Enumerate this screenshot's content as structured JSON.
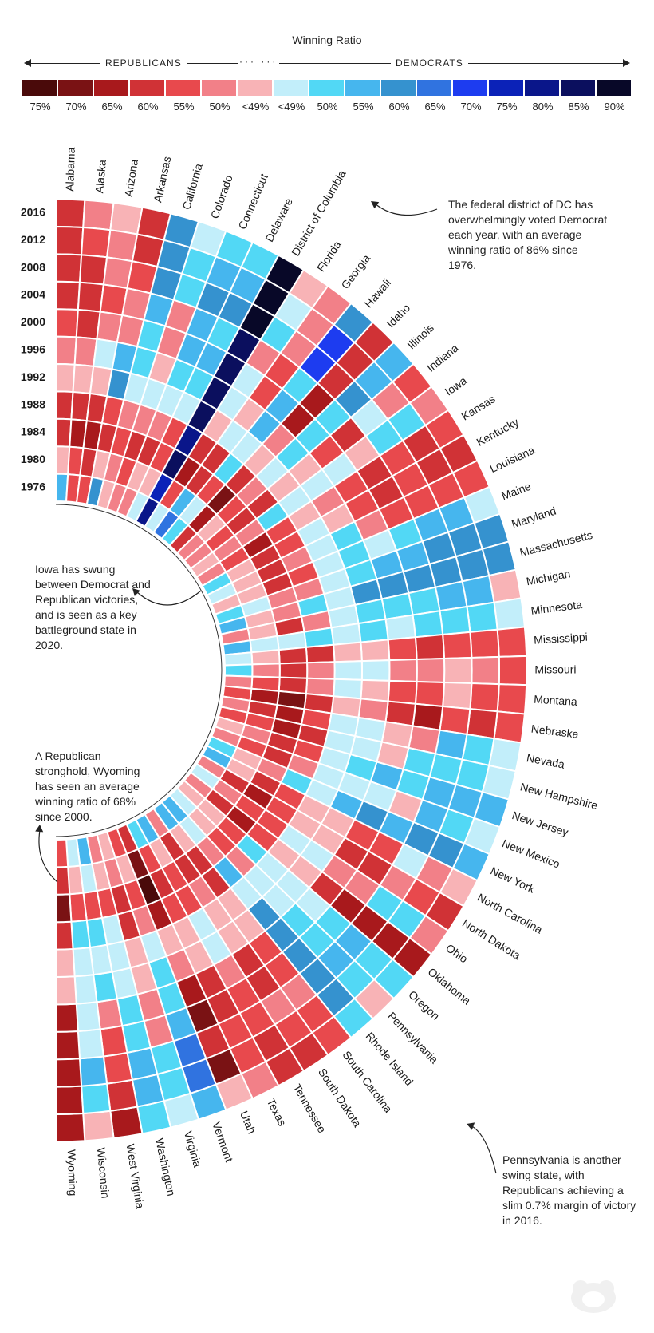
{
  "legend": {
    "title": "Winning Ratio",
    "left_label": "REPUBLICANS",
    "right_label": "DEMOCRATS",
    "dots": "··· ···",
    "swatches": [
      {
        "label": "75%",
        "color": "#4a0a0a"
      },
      {
        "label": "70%",
        "color": "#7a1214"
      },
      {
        "label": "65%",
        "color": "#a8191c"
      },
      {
        "label": "60%",
        "color": "#d03236"
      },
      {
        "label": "55%",
        "color": "#e8494d"
      },
      {
        "label": "50%",
        "color": "#f28088"
      },
      {
        "label": "<49%",
        "color": "#f8b3b6"
      },
      {
        "label": "<49%",
        "color": "#c2eefa"
      },
      {
        "label": "50%",
        "color": "#52d8f5"
      },
      {
        "label": "55%",
        "color": "#46b6ee"
      },
      {
        "label": "60%",
        "color": "#3592cf"
      },
      {
        "label": "65%",
        "color": "#3073e0"
      },
      {
        "label": "70%",
        "color": "#1d3cf0"
      },
      {
        "label": "75%",
        "color": "#0b22b8"
      },
      {
        "label": "80%",
        "color": "#0a168a"
      },
      {
        "label": "85%",
        "color": "#0b0f5e"
      },
      {
        "label": "90%",
        "color": "#080828"
      }
    ]
  },
  "annotations": {
    "dc": "The federal district of DC has overwhelmingly voted Democrat each year, with an average winning ratio of 86% since 1976.",
    "iowa": "Iowa has swung between Democrat and Republican victories, and is seen as a key battleground state in 2020.",
    "wyoming": "A Republican stronghold, Wyoming has seen an average winning ratio of 68% since 2000.",
    "pennsylvania": "Pennsylvania is another swing state, with Republicans achieving a slim 0.7% margin of victory in 2016."
  },
  "chart_data": {
    "type": "heatmap",
    "title": "Winning Ratio",
    "years": [
      "2016",
      "2012",
      "2008",
      "2004",
      "2000",
      "1996",
      "1992",
      "1988",
      "1984",
      "1980",
      "1976"
    ],
    "code_legend": {
      "R75": "#4a0a0a",
      "R70": "#7a1214",
      "R65": "#a8191c",
      "R60": "#d03236",
      "R55": "#e8494d",
      "R50": "#f28088",
      "R49": "#f8b3b6",
      "D49": "#c2eefa",
      "D50": "#52d8f5",
      "D55": "#46b6ee",
      "D60": "#3592cf",
      "D65": "#3073e0",
      "D70": "#1d3cf0",
      "D75": "#0b22b8",
      "D80": "#0a168a",
      "D85": "#0b0f5e",
      "D90": "#080828"
    },
    "states": [
      {
        "name": "Alabama",
        "results": [
          "R60",
          "R60",
          "R60",
          "R60",
          "R55",
          "R50",
          "R49",
          "R60",
          "R60",
          "R49",
          "D55"
        ]
      },
      {
        "name": "Alaska",
        "results": [
          "R50",
          "R55",
          "R60",
          "R60",
          "R60",
          "R50",
          "R49",
          "R60",
          "R65",
          "R55",
          "R55"
        ]
      },
      {
        "name": "Arizona",
        "results": [
          "R49",
          "R50",
          "R50",
          "R55",
          "R50",
          "D49",
          "R49",
          "R60",
          "R65",
          "R60",
          "R55"
        ]
      },
      {
        "name": "Arkansas",
        "results": [
          "R60",
          "R60",
          "R55",
          "R50",
          "R50",
          "D55",
          "D60",
          "R55",
          "R60",
          "R49",
          "D60"
        ]
      },
      {
        "name": "California",
        "results": [
          "D60",
          "D60",
          "D60",
          "D55",
          "D50",
          "D50",
          "D49",
          "R50",
          "R55",
          "R50",
          "R49"
        ]
      },
      {
        "name": "Colorado",
        "results": [
          "D49",
          "D50",
          "D50",
          "R50",
          "R50",
          "R49",
          "D49",
          "R50",
          "R60",
          "R55",
          "R50"
        ]
      },
      {
        "name": "Connecticut",
        "results": [
          "D50",
          "D55",
          "D60",
          "D55",
          "D55",
          "D50",
          "D49",
          "R50",
          "R60",
          "R49",
          "R50"
        ]
      },
      {
        "name": "Delaware",
        "results": [
          "D50",
          "D55",
          "D60",
          "D50",
          "D55",
          "D50",
          "D49",
          "R55",
          "R55",
          "R49",
          "D49"
        ]
      },
      {
        "name": "District of Columbia",
        "results": [
          "D90",
          "D90",
          "D90",
          "D85",
          "D85",
          "D85",
          "D85",
          "D80",
          "D85",
          "D75",
          "D80"
        ]
      },
      {
        "name": "Florida",
        "results": [
          "R49",
          "D49",
          "D50",
          "R50",
          "D49",
          "D49",
          "R49",
          "R60",
          "R65",
          "R55",
          "D49"
        ]
      },
      {
        "name": "Georgia",
        "results": [
          "R50",
          "R50",
          "R50",
          "R55",
          "R55",
          "R49",
          "D49",
          "R60",
          "R60",
          "D55",
          "D65"
        ]
      },
      {
        "name": "Hawaii",
        "results": [
          "D60",
          "D70",
          "D70",
          "D50",
          "D55",
          "D55",
          "D49",
          "D50",
          "R55",
          "D49",
          "D50"
        ]
      },
      {
        "name": "Idaho",
        "results": [
          "R60",
          "R60",
          "R60",
          "R65",
          "R65",
          "R50",
          "R49",
          "R60",
          "R70",
          "R65",
          "R60"
        ]
      },
      {
        "name": "Illinois",
        "results": [
          "D55",
          "D55",
          "D60",
          "D50",
          "D50",
          "D50",
          "D49",
          "R50",
          "R55",
          "R49",
          "R50"
        ]
      },
      {
        "name": "Indiana",
        "results": [
          "R55",
          "R50",
          "D49",
          "R60",
          "R55",
          "R49",
          "R49",
          "R60",
          "R60",
          "R55",
          "R50"
        ]
      },
      {
        "name": "Iowa",
        "results": [
          "R50",
          "D50",
          "D50",
          "R49",
          "D49",
          "D49",
          "D49",
          "D50",
          "R50",
          "R50",
          "R49"
        ]
      },
      {
        "name": "Kansas",
        "results": [
          "R55",
          "R60",
          "R55",
          "R60",
          "R55",
          "R50",
          "R49",
          "R55",
          "R65",
          "R55",
          "R50"
        ]
      },
      {
        "name": "Kentucky",
        "results": [
          "R60",
          "R60",
          "R55",
          "R60",
          "R55",
          "R49",
          "D49",
          "R55",
          "R60",
          "R49",
          "D50"
        ]
      },
      {
        "name": "Louisiana",
        "results": [
          "R55",
          "R55",
          "R55",
          "R55",
          "R50",
          "D50",
          "D49",
          "R50",
          "R60",
          "R49",
          "D49"
        ]
      },
      {
        "name": "Maine",
        "results": [
          "D49",
          "D55",
          "D55",
          "D50",
          "D49",
          "D50",
          "D49",
          "R55",
          "R60",
          "R49",
          "R49"
        ]
      },
      {
        "name": "Maryland",
        "results": [
          "D60",
          "D60",
          "D60",
          "D55",
          "D55",
          "D50",
          "D49",
          "R50",
          "R50",
          "D49",
          "D50"
        ]
      },
      {
        "name": "Massachusetts",
        "results": [
          "D60",
          "D60",
          "D60",
          "D60",
          "D60",
          "D60",
          "D49",
          "D50",
          "R50",
          "R49",
          "D55"
        ]
      },
      {
        "name": "Michigan",
        "results": [
          "R49",
          "D55",
          "D55",
          "D50",
          "D50",
          "D50",
          "D49",
          "R50",
          "R60",
          "R49",
          "R50"
        ]
      },
      {
        "name": "Minnesota",
        "results": [
          "D49",
          "D50",
          "D50",
          "D50",
          "D49",
          "D50",
          "D49",
          "D50",
          "D49",
          "D49",
          "D55"
        ]
      },
      {
        "name": "Mississippi",
        "results": [
          "R55",
          "R55",
          "R55",
          "R60",
          "R55",
          "R49",
          "R49",
          "R60",
          "R60",
          "R49",
          "D49"
        ]
      },
      {
        "name": "Missouri",
        "results": [
          "R55",
          "R50",
          "R49",
          "R50",
          "R50",
          "D49",
          "D49",
          "R50",
          "R60",
          "R50",
          "D50"
        ]
      },
      {
        "name": "Montana",
        "results": [
          "R55",
          "R55",
          "R49",
          "R55",
          "R55",
          "R49",
          "D49",
          "R50",
          "R60",
          "R55",
          "R50"
        ]
      },
      {
        "name": "Nebraska",
        "results": [
          "R55",
          "R60",
          "R55",
          "R65",
          "R60",
          "R50",
          "R49",
          "R60",
          "R70",
          "R65",
          "R55"
        ]
      },
      {
        "name": "Nevada",
        "results": [
          "D49",
          "D50",
          "D55",
          "R50",
          "R49",
          "D49",
          "D49",
          "R55",
          "R65",
          "R60",
          "R50"
        ]
      },
      {
        "name": "New Hampshire",
        "results": [
          "D49",
          "D50",
          "D50",
          "D50",
          "R49",
          "D49",
          "D49",
          "R60",
          "R65",
          "R55",
          "R55"
        ]
      },
      {
        "name": "New Jersey",
        "results": [
          "D55",
          "D55",
          "D55",
          "D50",
          "D55",
          "D50",
          "D49",
          "R55",
          "R60",
          "R50",
          "R49"
        ]
      },
      {
        "name": "New Mexico",
        "results": [
          "D49",
          "D50",
          "D55",
          "R49",
          "D49",
          "D49",
          "D49",
          "R50",
          "R60",
          "R55",
          "R50"
        ]
      },
      {
        "name": "New York",
        "results": [
          "D55",
          "D60",
          "D60",
          "D55",
          "D60",
          "D55",
          "D49",
          "D50",
          "R50",
          "R49",
          "D50"
        ]
      },
      {
        "name": "North Carolina",
        "results": [
          "R49",
          "R50",
          "D49",
          "R55",
          "R55",
          "R49",
          "R49",
          "R55",
          "R60",
          "R49",
          "D55"
        ]
      },
      {
        "name": "North Dakota",
        "results": [
          "R60",
          "R55",
          "R50",
          "R60",
          "R60",
          "R49",
          "R49",
          "R55",
          "R65",
          "R60",
          "R50"
        ]
      },
      {
        "name": "Ohio",
        "results": [
          "R50",
          "D50",
          "D50",
          "R50",
          "R50",
          "D49",
          "D49",
          "R55",
          "R55",
          "R50",
          "D49"
        ]
      },
      {
        "name": "Oklahoma",
        "results": [
          "R65",
          "R65",
          "R65",
          "R65",
          "R60",
          "R49",
          "R49",
          "R55",
          "R65",
          "R60",
          "R50"
        ]
      },
      {
        "name": "Oregon",
        "results": [
          "D50",
          "D50",
          "D55",
          "D50",
          "D49",
          "D49",
          "D49",
          "D50",
          "R55",
          "R49",
          "R49"
        ]
      },
      {
        "name": "Pennsylvania",
        "results": [
          "R49",
          "D50",
          "D55",
          "D50",
          "D50",
          "D49",
          "D49",
          "R50",
          "R55",
          "R49",
          "D49"
        ]
      },
      {
        "name": "Rhode Island",
        "results": [
          "D50",
          "D60",
          "D60",
          "D60",
          "D60",
          "D60",
          "D49",
          "D55",
          "R50",
          "D49",
          "D55"
        ]
      },
      {
        "name": "South Carolina",
        "results": [
          "R55",
          "R55",
          "R50",
          "R55",
          "R55",
          "R49",
          "R49",
          "R60",
          "R60",
          "R49",
          "D55"
        ]
      },
      {
        "name": "South Dakota",
        "results": [
          "R60",
          "R55",
          "R50",
          "R60",
          "R60",
          "R49",
          "R49",
          "R50",
          "R60",
          "R60",
          "R50"
        ]
      },
      {
        "name": "Tennessee",
        "results": [
          "R60",
          "R60",
          "R55",
          "R55",
          "R50",
          "D49",
          "D49",
          "R55",
          "R55",
          "R49",
          "D55"
        ]
      },
      {
        "name": "Texas",
        "results": [
          "R50",
          "R55",
          "R55",
          "R60",
          "R60",
          "R49",
          "R49",
          "R55",
          "R60",
          "R55",
          "D50"
        ]
      },
      {
        "name": "Utah",
        "results": [
          "R49",
          "R70",
          "R60",
          "R70",
          "R65",
          "R50",
          "R49",
          "R65",
          "R75",
          "R70",
          "R60"
        ]
      },
      {
        "name": "Vermont",
        "results": [
          "D55",
          "D65",
          "D65",
          "D55",
          "D50",
          "D50",
          "D49",
          "R50",
          "R55",
          "R49",
          "R55"
        ]
      },
      {
        "name": "Virginia",
        "results": [
          "D49",
          "D50",
          "D50",
          "R50",
          "R50",
          "R49",
          "R49",
          "R60",
          "R60",
          "R50",
          "R49"
        ]
      },
      {
        "name": "Washington",
        "results": [
          "D50",
          "D55",
          "D55",
          "D50",
          "D50",
          "D49",
          "D49",
          "D49",
          "R55",
          "R49",
          "R50"
        ]
      },
      {
        "name": "West Virginia",
        "results": [
          "R65",
          "R60",
          "R55",
          "R55",
          "R50",
          "D50",
          "D49",
          "D50",
          "R55",
          "D49",
          "D55"
        ]
      },
      {
        "name": "Wisconsin",
        "results": [
          "R49",
          "D50",
          "D55",
          "D49",
          "D49",
          "D49",
          "D49",
          "D50",
          "R55",
          "R49",
          "D49"
        ]
      },
      {
        "name": "Wyoming",
        "results": [
          "R65",
          "R65",
          "R65",
          "R65",
          "R65",
          "R49",
          "R49",
          "R60",
          "R70",
          "R60",
          "R55"
        ]
      }
    ]
  }
}
